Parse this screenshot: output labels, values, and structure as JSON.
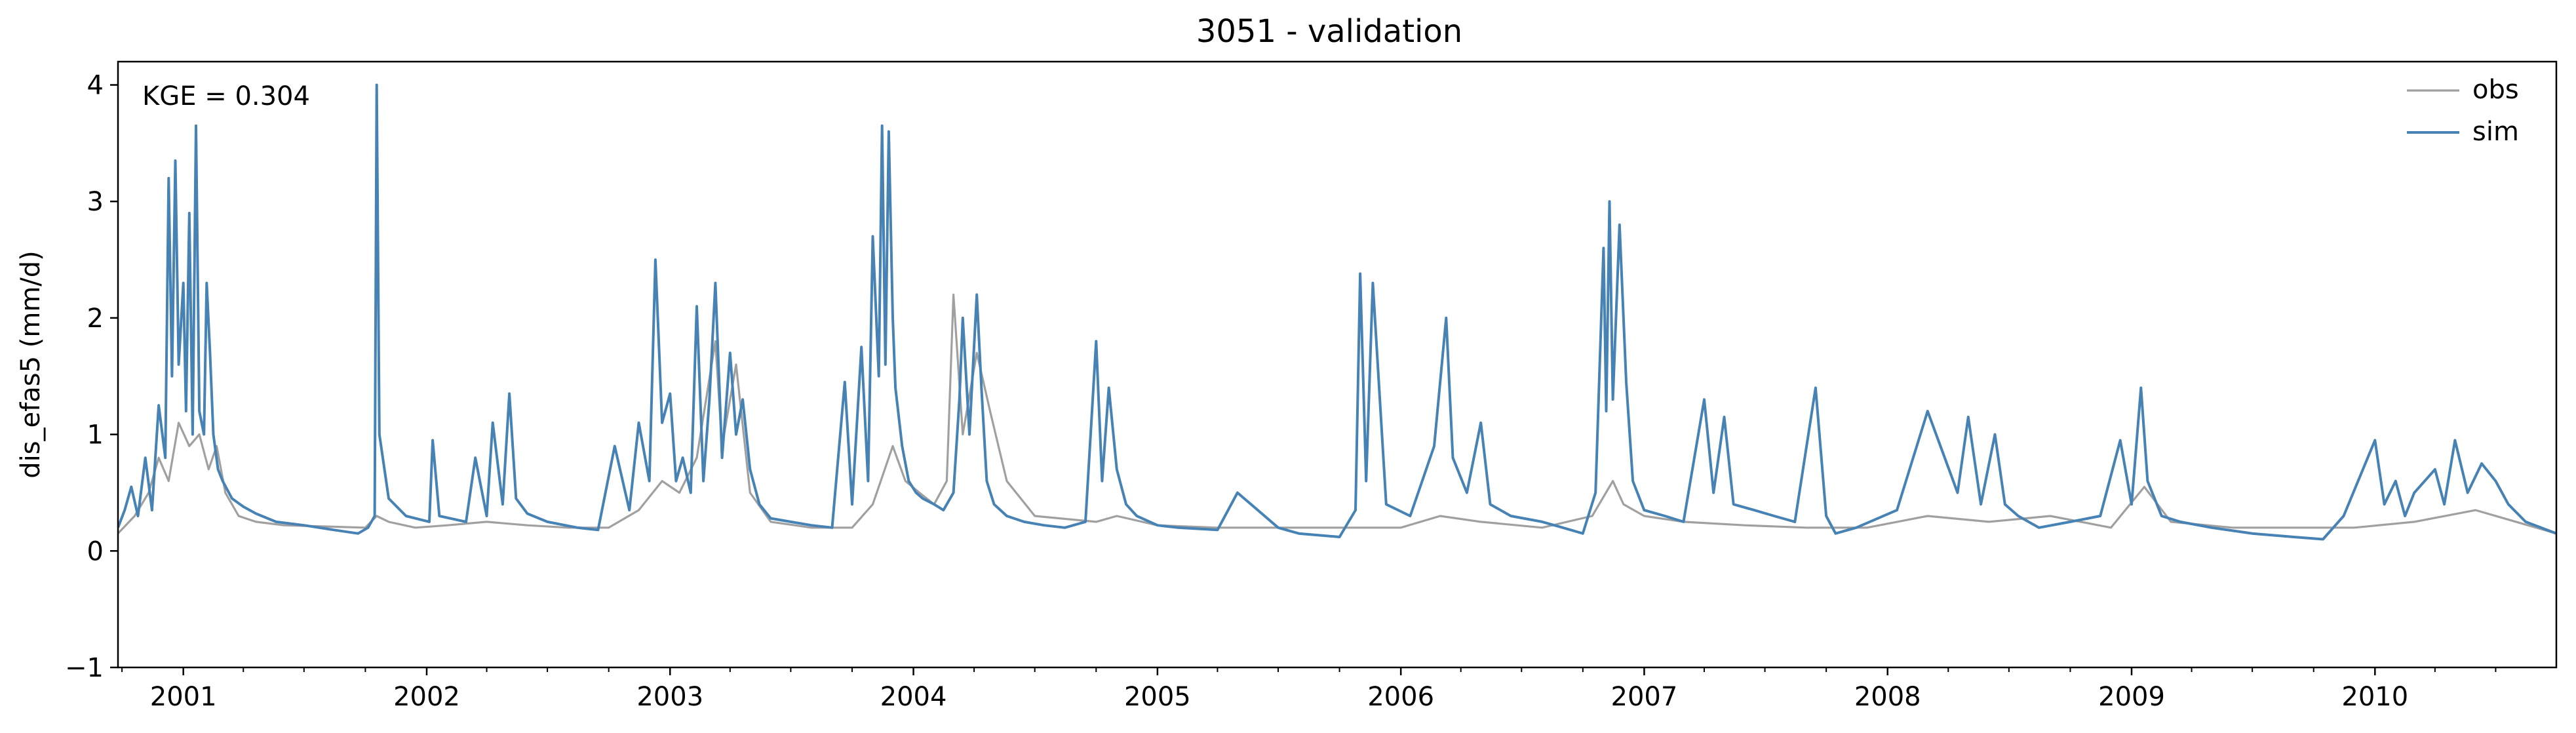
{
  "chart_data": {
    "type": "line",
    "title": "3051 - validation",
    "xlabel": "",
    "ylabel": "dis_efas5 (mm/d)",
    "annotation": "KGE = 0.304",
    "xlim": [
      "2000-09-25",
      "2010-09-30"
    ],
    "ylim": [
      -1,
      4.2
    ],
    "yticks": [
      -1,
      0,
      1,
      2,
      3,
      4
    ],
    "ytick_labels": [
      "−1",
      "0",
      "1",
      "2",
      "3",
      "4"
    ],
    "xticks": [
      "2001-01-01",
      "2002-01-01",
      "2003-01-01",
      "2004-01-01",
      "2005-01-01",
      "2006-01-01",
      "2007-01-01",
      "2008-01-01",
      "2009-01-01",
      "2010-01-01"
    ],
    "xtick_labels": [
      "2001",
      "2002",
      "2003",
      "2004",
      "2005",
      "2006",
      "2007",
      "2008",
      "2009",
      "2010"
    ],
    "legend_position": "top-right",
    "grid": false,
    "series": [
      {
        "name": "obs",
        "color": "#a0a0a0",
        "x": [
          "2000-09-25",
          "2000-10-20",
          "2000-11-10",
          "2000-11-25",
          "2000-12-10",
          "2000-12-25",
          "2001-01-10",
          "2001-01-25",
          "2001-02-08",
          "2001-02-20",
          "2001-03-05",
          "2001-03-25",
          "2001-04-20",
          "2001-06-01",
          "2001-08-01",
          "2001-10-01",
          "2001-10-18",
          "2001-11-05",
          "2001-12-15",
          "2002-02-01",
          "2002-04-01",
          "2002-06-01",
          "2002-08-01",
          "2002-10-01",
          "2002-11-15",
          "2002-12-20",
          "2003-01-15",
          "2003-02-10",
          "2003-03-10",
          "2003-03-20",
          "2003-04-10",
          "2003-05-01",
          "2003-06-01",
          "2003-08-01",
          "2003-10-01",
          "2003-11-01",
          "2003-12-01",
          "2003-12-20",
          "2004-01-10",
          "2004-02-01",
          "2004-02-20",
          "2004-03-01",
          "2004-03-15",
          "2004-04-05",
          "2004-04-25",
          "2004-05-20",
          "2004-07-01",
          "2004-10-01",
          "2004-11-01",
          "2005-01-01",
          "2005-04-01",
          "2005-07-01",
          "2005-10-01",
          "2006-01-01",
          "2006-03-01",
          "2006-05-01",
          "2006-08-01",
          "2006-10-15",
          "2006-11-15",
          "2006-12-01",
          "2007-01-01",
          "2007-03-01",
          "2007-06-01",
          "2007-09-01",
          "2007-12-01",
          "2008-03-01",
          "2008-06-01",
          "2008-09-01",
          "2008-12-01",
          "2009-01-20",
          "2009-03-01",
          "2009-06-01",
          "2009-09-01",
          "2009-12-01",
          "2010-03-01",
          "2010-06-01",
          "2010-09-30"
        ],
        "y": [
          0.15,
          0.3,
          0.5,
          0.8,
          0.6,
          1.1,
          0.9,
          1.0,
          0.7,
          0.9,
          0.5,
          0.3,
          0.25,
          0.22,
          0.21,
          0.2,
          0.3,
          0.25,
          0.2,
          0.22,
          0.25,
          0.22,
          0.2,
          0.2,
          0.35,
          0.6,
          0.5,
          0.8,
          1.8,
          0.9,
          1.6,
          0.5,
          0.25,
          0.2,
          0.2,
          0.4,
          0.9,
          0.6,
          0.5,
          0.4,
          0.6,
          2.2,
          1.0,
          1.7,
          1.2,
          0.6,
          0.3,
          0.25,
          0.3,
          0.22,
          0.2,
          0.2,
          0.2,
          0.2,
          0.3,
          0.25,
          0.2,
          0.3,
          0.6,
          0.4,
          0.3,
          0.25,
          0.22,
          0.2,
          0.2,
          0.3,
          0.25,
          0.3,
          0.2,
          0.55,
          0.25,
          0.2,
          0.2,
          0.2,
          0.25,
          0.35,
          0.15
        ]
      },
      {
        "name": "sim",
        "color": "#4682b4",
        "x": [
          "2000-09-25",
          "2000-10-05",
          "2000-10-15",
          "2000-10-25",
          "2000-11-05",
          "2000-11-15",
          "2000-11-25",
          "2000-12-05",
          "2000-12-10",
          "2000-12-15",
          "2000-12-20",
          "2000-12-25",
          "2001-01-01",
          "2001-01-05",
          "2001-01-10",
          "2001-01-15",
          "2001-01-20",
          "2001-01-25",
          "2001-02-01",
          "2001-02-05",
          "2001-02-10",
          "2001-02-15",
          "2001-02-22",
          "2001-03-01",
          "2001-03-15",
          "2001-04-01",
          "2001-04-20",
          "2001-05-20",
          "2001-07-01",
          "2001-08-15",
          "2001-09-20",
          "2001-10-05",
          "2001-10-15",
          "2001-10-18",
          "2001-10-22",
          "2001-11-05",
          "2001-12-01",
          "2002-01-05",
          "2002-01-10",
          "2002-01-20",
          "2002-03-01",
          "2002-03-15",
          "2002-04-01",
          "2002-04-10",
          "2002-04-25",
          "2002-05-05",
          "2002-05-15",
          "2002-06-01",
          "2002-07-01",
          "2002-08-15",
          "2002-09-15",
          "2002-10-10",
          "2002-11-01",
          "2002-11-15",
          "2002-12-01",
          "2002-12-10",
          "2002-12-20",
          "2003-01-01",
          "2003-01-10",
          "2003-01-20",
          "2003-02-01",
          "2003-02-10",
          "2003-02-20",
          "2003-03-01",
          "2003-03-10",
          "2003-03-20",
          "2003-04-01",
          "2003-04-10",
          "2003-04-20",
          "2003-05-01",
          "2003-05-15",
          "2003-06-01",
          "2003-07-01",
          "2003-08-01",
          "2003-09-01",
          "2003-09-20",
          "2003-10-01",
          "2003-10-15",
          "2003-10-25",
          "2003-11-01",
          "2003-11-10",
          "2003-11-15",
          "2003-11-20",
          "2003-11-25",
          "2003-12-01",
          "2003-12-05",
          "2003-12-15",
          "2003-12-25",
          "2004-01-05",
          "2004-01-15",
          "2004-02-01",
          "2004-02-15",
          "2004-03-01",
          "2004-03-10",
          "2004-03-15",
          "2004-03-25",
          "2004-04-05",
          "2004-04-12",
          "2004-04-20",
          "2004-05-01",
          "2004-05-20",
          "2004-06-15",
          "2004-07-15",
          "2004-08-15",
          "2004-09-15",
          "2004-10-01",
          "2004-10-10",
          "2004-10-20",
          "2004-11-01",
          "2004-11-15",
          "2004-12-01",
          "2005-01-01",
          "2005-02-01",
          "2005-04-01",
          "2005-05-01",
          "2005-07-01",
          "2005-08-01",
          "2005-10-01",
          "2005-10-25",
          "2005-11-01",
          "2005-11-10",
          "2005-11-20",
          "2005-12-10",
          "2006-01-15",
          "2006-02-20",
          "2006-03-10",
          "2006-03-20",
          "2006-04-10",
          "2006-05-01",
          "2006-05-15",
          "2006-06-15",
          "2006-08-01",
          "2006-09-01",
          "2006-10-01",
          "2006-10-20",
          "2006-11-01",
          "2006-11-05",
          "2006-11-10",
          "2006-11-15",
          "2006-11-25",
          "2006-12-05",
          "2006-12-15",
          "2007-01-01",
          "2007-02-01",
          "2007-03-01",
          "2007-04-01",
          "2007-04-15",
          "2007-05-01",
          "2007-05-15",
          "2007-06-15",
          "2007-07-15",
          "2007-08-15",
          "2007-09-15",
          "2007-10-01",
          "2007-10-15",
          "2007-11-15",
          "2008-01-15",
          "2008-03-01",
          "2008-04-15",
          "2008-05-01",
          "2008-05-20",
          "2008-06-10",
          "2008-06-25",
          "2008-07-15",
          "2008-08-15",
          "2008-10-01",
          "2008-11-15",
          "2008-12-15",
          "2009-01-01",
          "2009-01-15",
          "2009-01-25",
          "2009-02-15",
          "2009-03-15",
          "2009-05-01",
          "2009-07-01",
          "2009-09-01",
          "2009-10-15",
          "2009-11-15",
          "2010-01-01",
          "2010-01-15",
          "2010-02-01",
          "2010-02-15",
          "2010-03-01",
          "2010-04-01",
          "2010-04-15",
          "2010-05-01",
          "2010-05-20",
          "2010-06-10",
          "2010-07-01",
          "2010-07-20",
          "2010-08-15",
          "2010-09-30"
        ],
        "y": [
          0.2,
          0.35,
          0.55,
          0.3,
          0.8,
          0.35,
          1.25,
          0.8,
          3.2,
          1.5,
          3.35,
          1.6,
          2.3,
          1.2,
          2.9,
          1.0,
          3.65,
          1.2,
          1.0,
          2.3,
          1.7,
          1.0,
          0.7,
          0.6,
          0.45,
          0.38,
          0.32,
          0.25,
          0.22,
          0.18,
          0.15,
          0.2,
          0.3,
          4.0,
          1.0,
          0.45,
          0.3,
          0.25,
          0.95,
          0.3,
          0.25,
          0.8,
          0.3,
          1.1,
          0.4,
          1.35,
          0.45,
          0.32,
          0.25,
          0.2,
          0.18,
          0.9,
          0.35,
          1.1,
          0.6,
          2.5,
          1.1,
          1.35,
          0.6,
          0.8,
          0.5,
          2.1,
          0.6,
          1.3,
          2.3,
          0.8,
          1.7,
          1.0,
          1.3,
          0.7,
          0.4,
          0.28,
          0.25,
          0.22,
          0.2,
          1.45,
          0.4,
          1.75,
          0.6,
          2.7,
          1.5,
          3.65,
          1.6,
          3.6,
          2.0,
          1.4,
          0.9,
          0.6,
          0.5,
          0.45,
          0.4,
          0.35,
          0.5,
          1.3,
          2.0,
          1.0,
          2.2,
          1.4,
          0.6,
          0.4,
          0.3,
          0.25,
          0.22,
          0.2,
          0.25,
          1.8,
          0.6,
          1.4,
          0.7,
          0.4,
          0.3,
          0.22,
          0.2,
          0.18,
          0.5,
          0.2,
          0.15,
          0.12,
          0.35,
          2.38,
          0.6,
          2.3,
          0.4,
          0.3,
          0.9,
          2.0,
          0.8,
          0.5,
          1.1,
          0.4,
          0.3,
          0.25,
          0.2,
          0.15,
          0.5,
          2.6,
          1.2,
          3.0,
          1.3,
          2.8,
          1.45,
          0.6,
          0.35,
          0.3,
          0.25,
          1.3,
          0.5,
          1.15,
          0.4,
          0.35,
          0.3,
          0.25,
          1.4,
          0.3,
          0.15,
          0.2,
          0.35,
          1.2,
          0.5,
          1.15,
          0.4,
          1.0,
          0.4,
          0.3,
          0.2,
          0.25,
          0.3,
          0.95,
          0.4,
          1.4,
          0.6,
          0.3,
          0.25,
          0.2,
          0.15,
          0.12,
          0.1,
          0.3,
          0.95,
          0.4,
          0.6,
          0.3,
          0.5,
          0.7,
          0.4,
          0.95,
          0.5,
          0.75,
          0.6,
          0.4,
          0.25,
          0.15
        ]
      }
    ]
  }
}
